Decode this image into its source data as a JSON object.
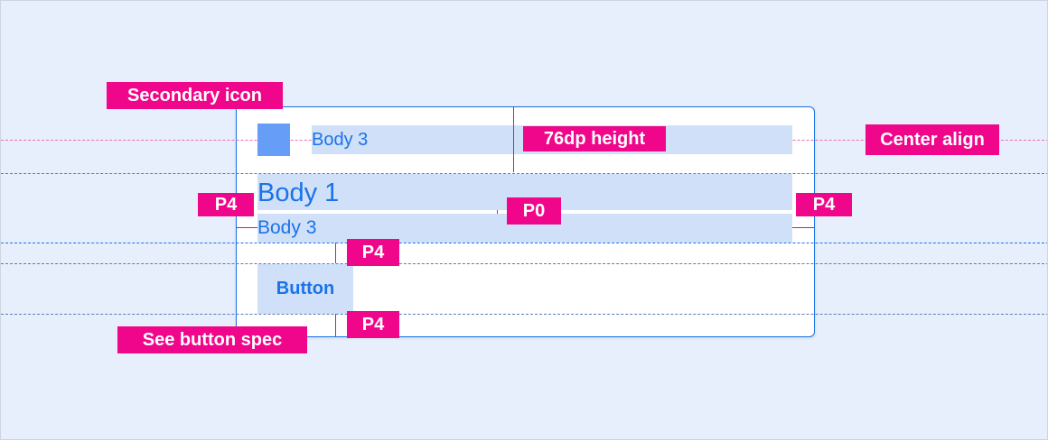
{
  "card": {
    "header_text": "Body 3",
    "title": "Body 1",
    "subtitle": "Body 3",
    "button_label": "Button"
  },
  "annotations": {
    "secondary_icon": "Secondary icon",
    "height": "76dp height",
    "center_align": "Center align",
    "padding_left": "P4",
    "padding_between": "P0",
    "padding_right": "P4",
    "padding_above_button": "P4",
    "padding_below_button": "P4",
    "button_spec": "See button spec"
  },
  "colors": {
    "accent": "#1a73e8",
    "annotation": "#f0068a",
    "highlight": "#d0e0f9",
    "icon": "#669df6"
  }
}
